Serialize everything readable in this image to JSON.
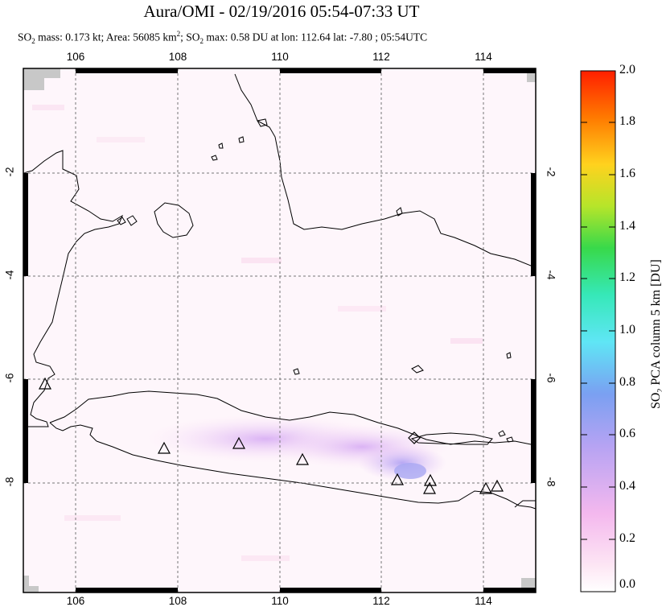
{
  "title": "Aura/OMI - 02/19/2016 05:54-07:33 UT",
  "subtitle": {
    "mass_label": "SO",
    "mass_label_sub": "2",
    "mass_text": " mass: 0.173 kt; Area: 56085 km",
    "area_sup": "2",
    "sep": "; SO",
    "max_sub": "2",
    "max_text": " max: 0.58 DU at lon: 112.64 lat: -7.80 ; 05:54UTC"
  },
  "map": {
    "lon_ticks": [
      "106",
      "108",
      "110",
      "112",
      "114"
    ],
    "lat_ticks": [
      "-2",
      "-4",
      "-6",
      "-8"
    ],
    "volcano_icon": "triangle-icon",
    "volcano_count": 9
  },
  "colorbar": {
    "title_main": "SO",
    "title_sub": "2",
    "title_rest": " PCA column 5 km [DU]",
    "ticks": [
      "2.0",
      "1.8",
      "1.6",
      "1.4",
      "1.2",
      "1.0",
      "0.8",
      "0.6",
      "0.4",
      "0.2",
      "0.0"
    ],
    "colors": [
      "#ff1f00",
      "#ff7a00",
      "#ffd21e",
      "#b6e52a",
      "#38d94a",
      "#36e8b8",
      "#5fe6f5",
      "#72aaf2",
      "#a9a0f0",
      "#e8a8ef",
      "#fde6f4",
      "#ffffff"
    ]
  }
}
